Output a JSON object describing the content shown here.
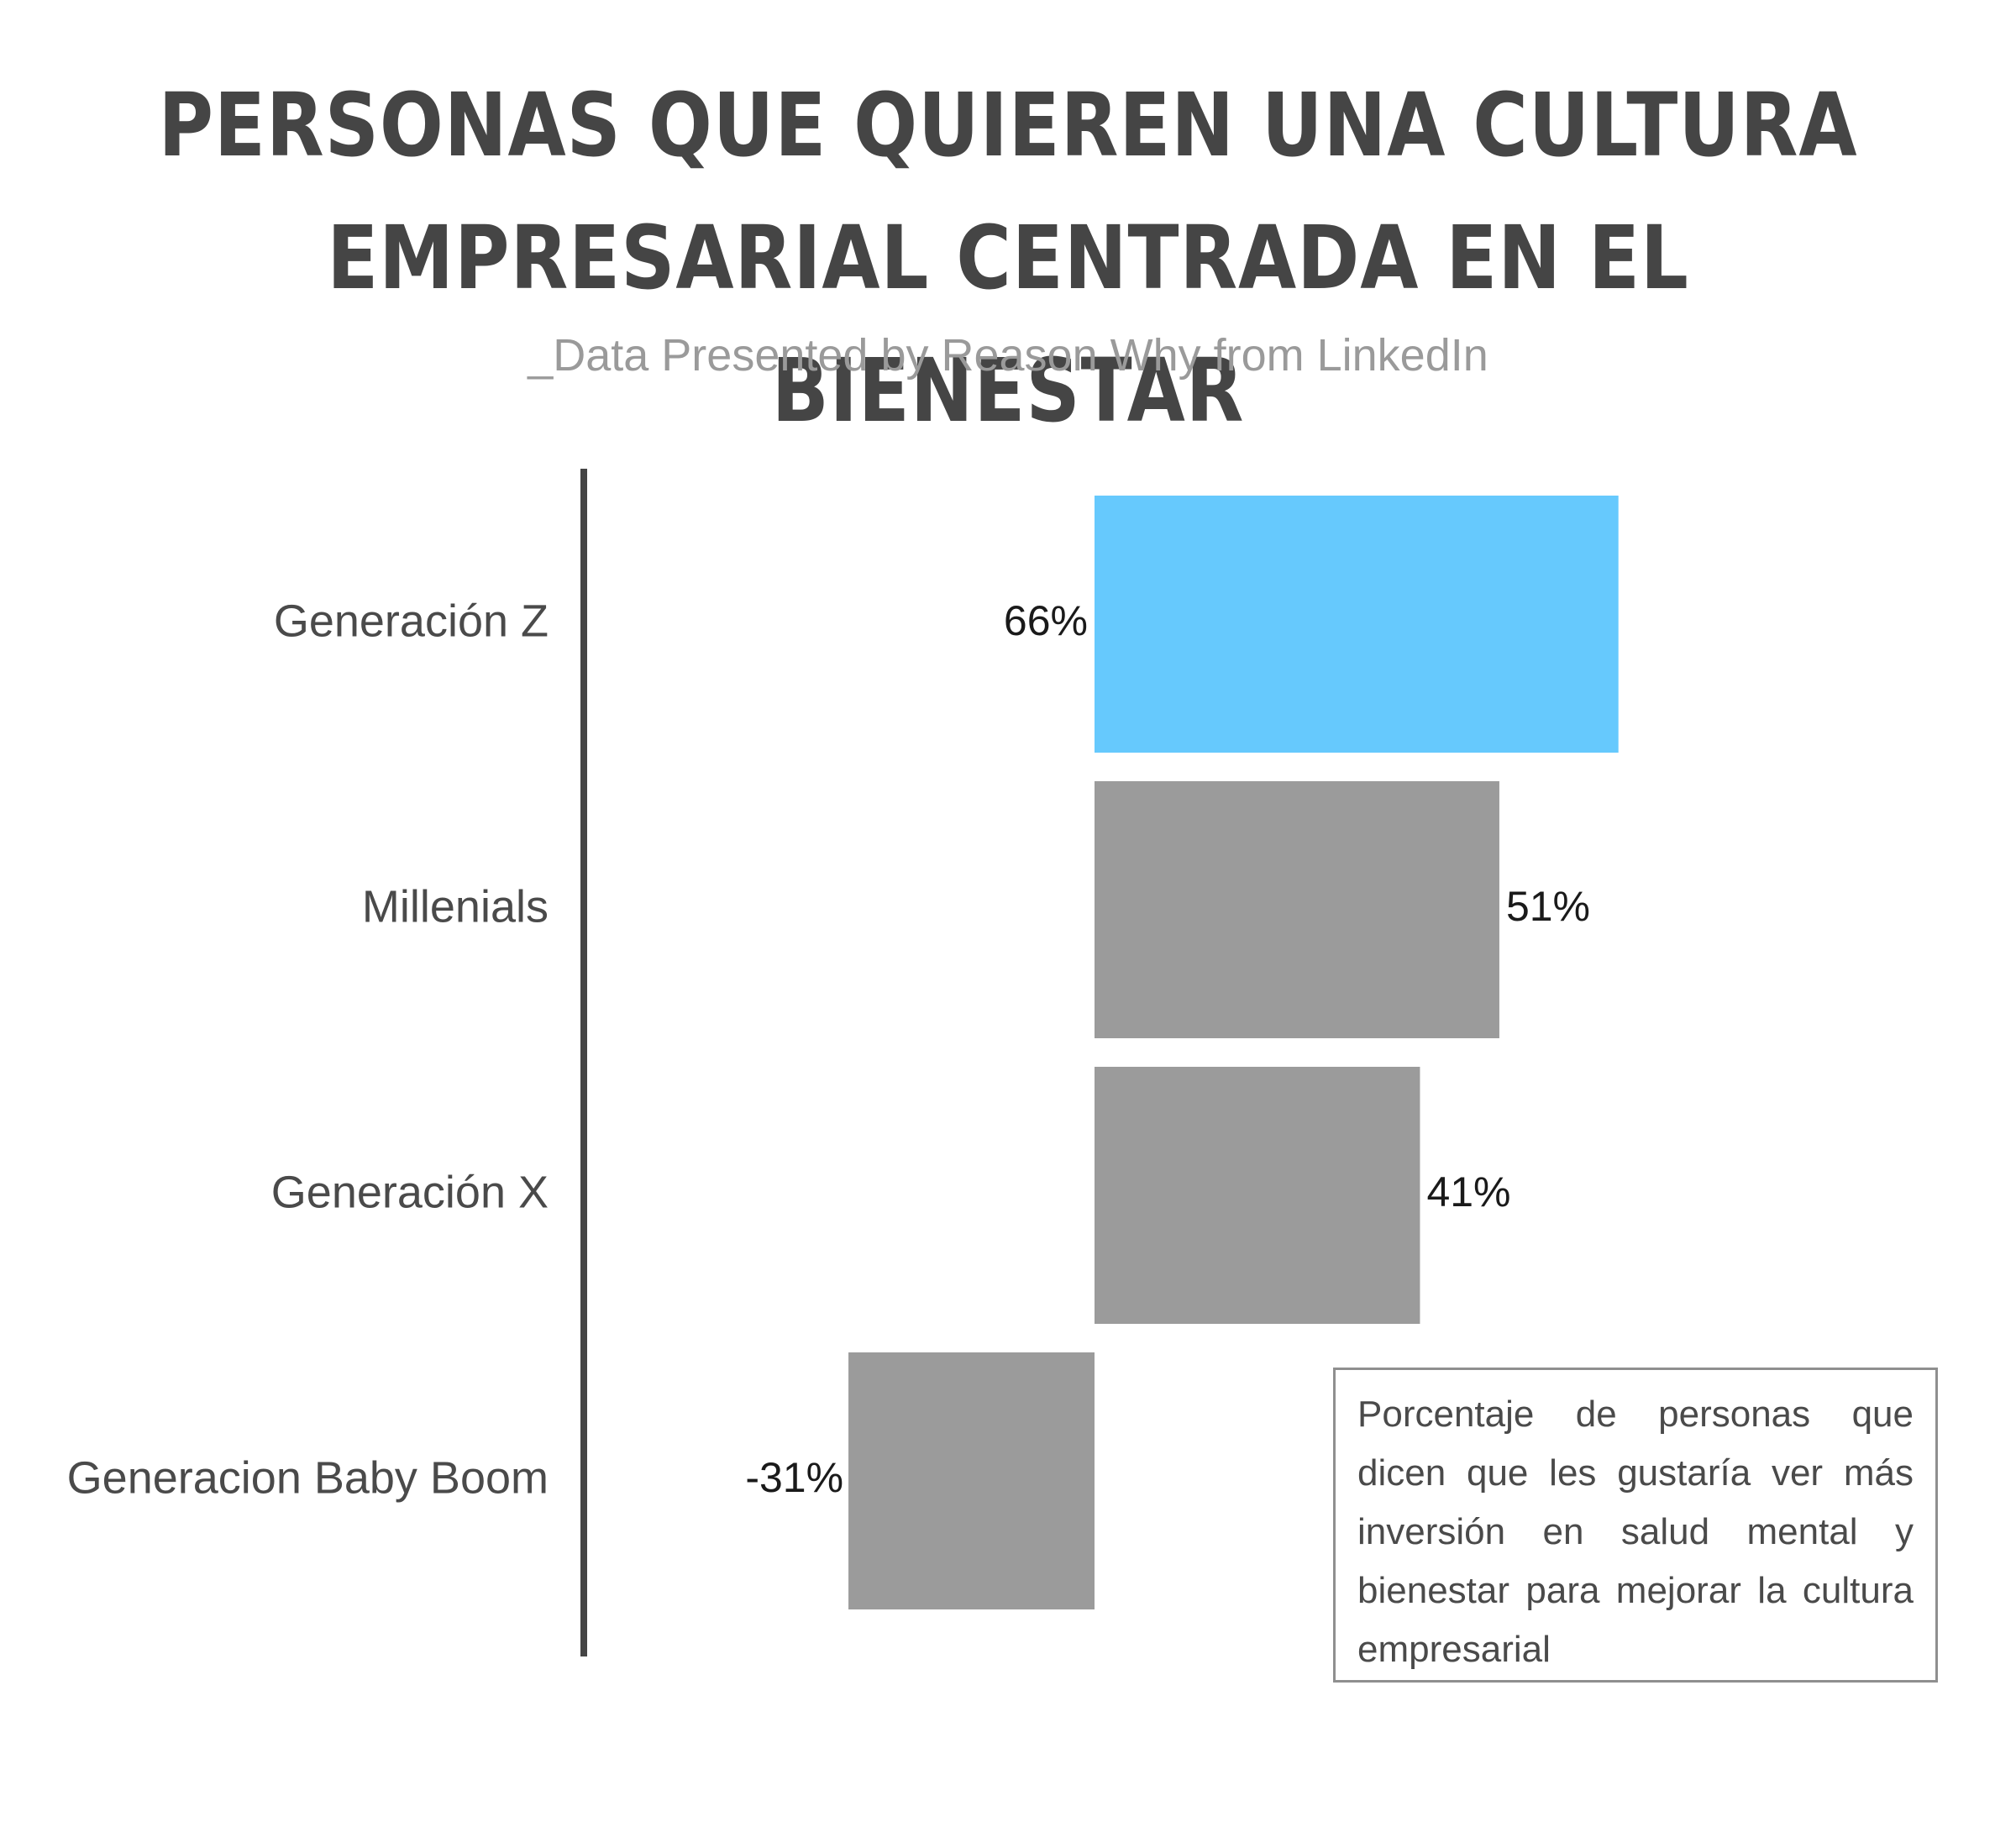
{
  "title_lines": [
    "PERSONAS QUE QUIEREN UNA CULTURA",
    "EMPRESARIAL CENTRADA EN EL BIENESTAR"
  ],
  "subtitle": "_Data Presented by Reason Why from LinkedIn",
  "note": "Porcentaje de personas que dicen que les gustaría ver más inversión en salud mental y bienestar para mejorar la cultura empresarial",
  "chart_data": {
    "type": "bar",
    "orientation": "horizontal",
    "categories": [
      "Generación Z",
      "Millenials",
      "Generación X",
      "Generacion Baby Boom"
    ],
    "values": [
      66,
      51,
      41,
      -31
    ],
    "value_labels": [
      "66%",
      "51%",
      "41%",
      "-31%"
    ],
    "colors": [
      "#66c9fd",
      "#9b9b9b",
      "#9b9b9b",
      "#9b9b9b"
    ],
    "axis_line_color": "#454545",
    "grid": false,
    "legend": "none"
  }
}
